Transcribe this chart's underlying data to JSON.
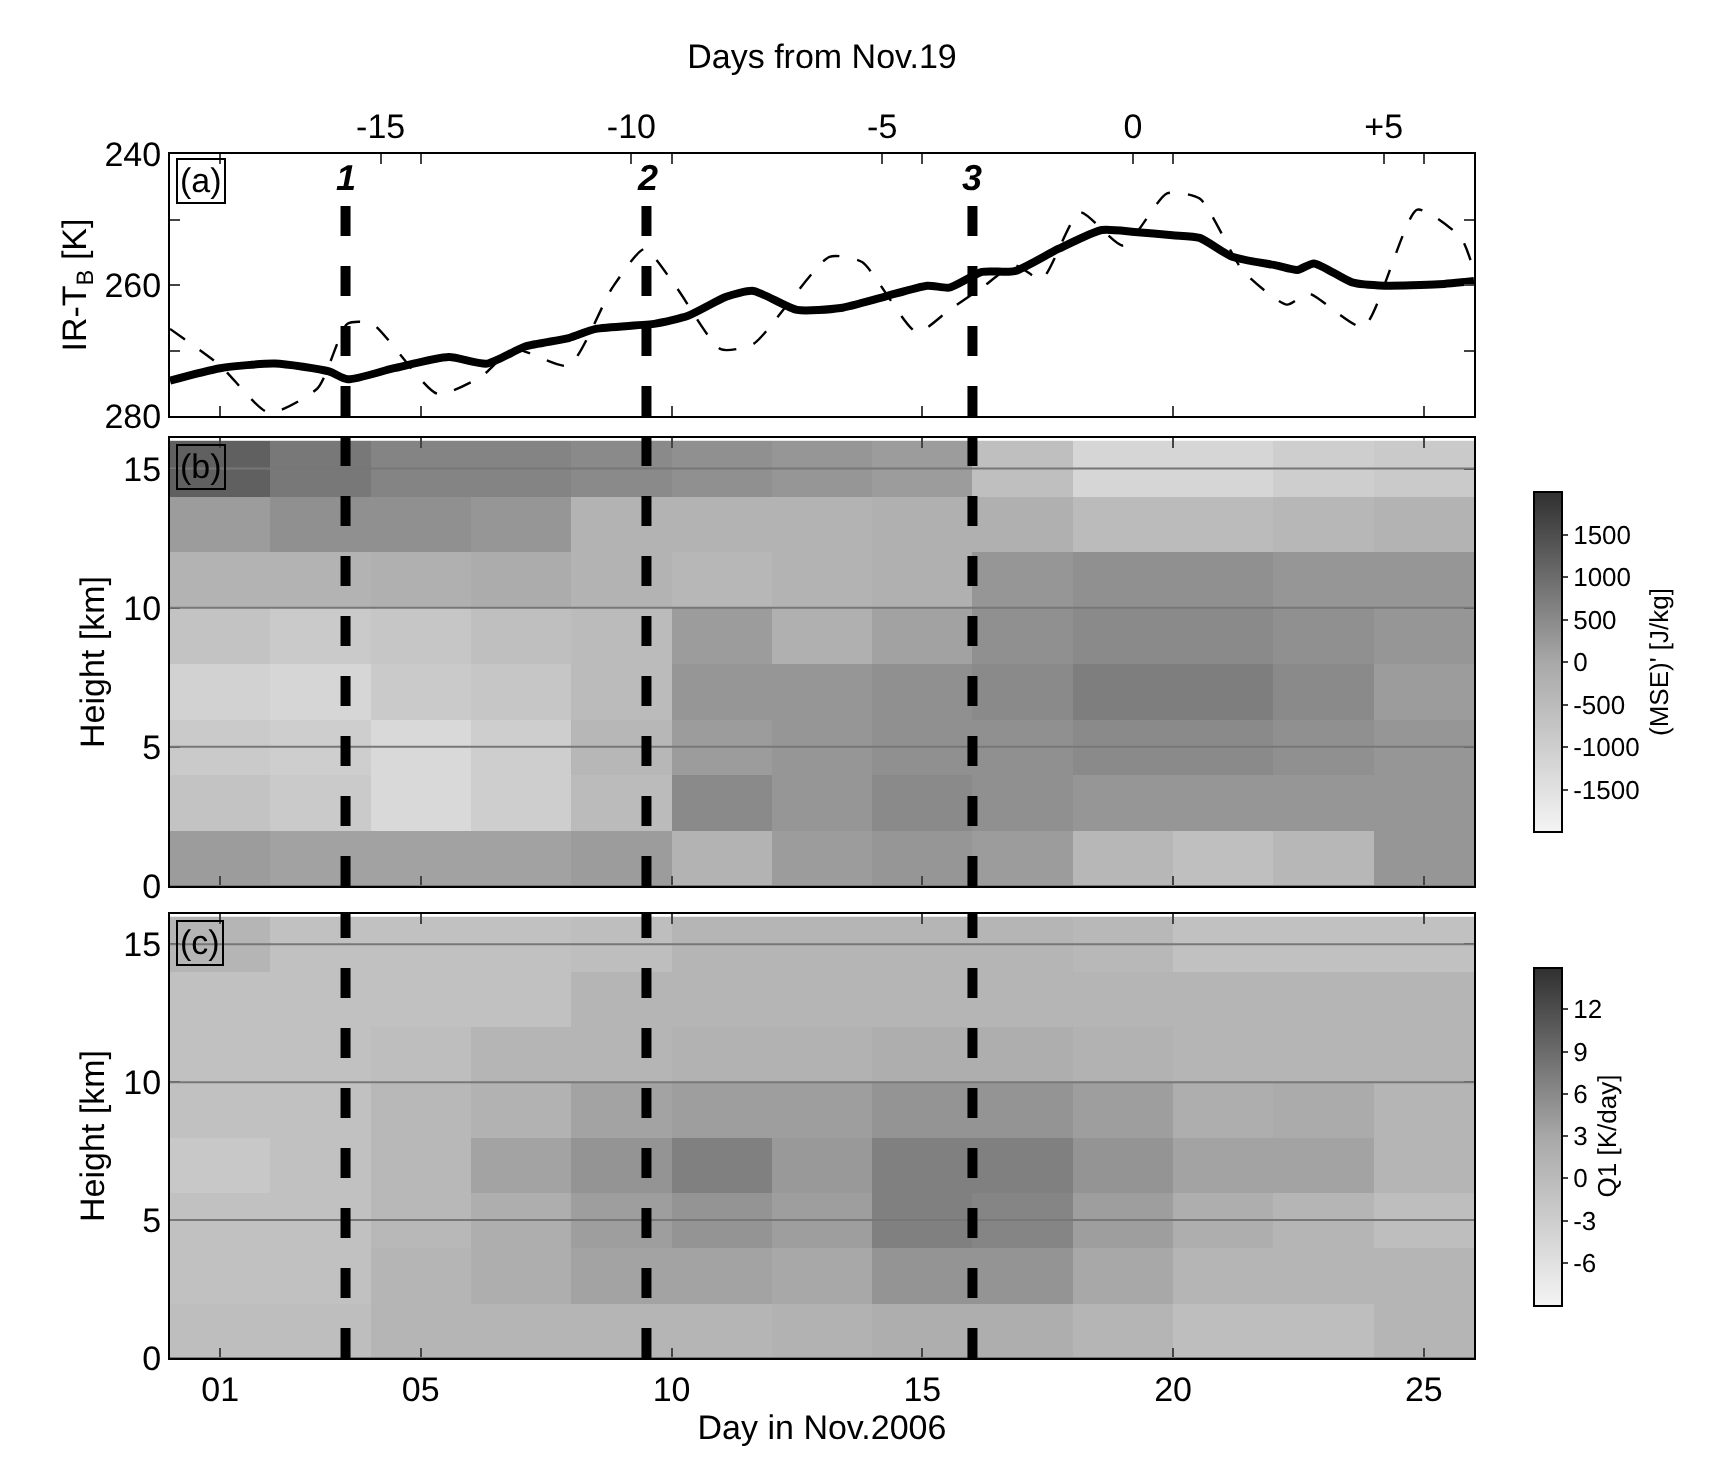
{
  "chart_data": [
    {
      "type": "line",
      "ylabel": "IR-T$_{B}$ [K]",
      "x2label": "Days from Nov.19",
      "xlim": [
        0,
        26
      ],
      "xticks": [
        1,
        5,
        10,
        15,
        20,
        25
      ],
      "x2lim": [
        -19.2,
        6.8
      ],
      "x2ticks": [
        -15,
        -10,
        -5,
        0,
        {
          "value": 5,
          "label": "+5"
        }
      ],
      "ylim": [
        280,
        240
      ],
      "yticks": [
        240,
        {
          "value": 250,
          "label": null
        },
        260,
        {
          "value": 270,
          "label": null
        },
        280
      ],
      "tick_labels": "y",
      "grid": false,
      "marker": "none",
      "annotations": [
        "(a)",
        "1",
        "2",
        "3"
      ],
      "ref_lines": [
        {
          "axis": "x",
          "value": 3.5,
          "line_style": "dashed",
          "color": "#000000"
        },
        {
          "axis": "x",
          "value": 9.5,
          "line_style": "dashed",
          "color": "#000000"
        },
        {
          "axis": "x",
          "value": 16.0,
          "line_style": "dashed",
          "color": "#000000"
        }
      ],
      "series": [
        {
          "color": "#000000",
          "line_style": "solid",
          "x": [
            0,
            1.0,
            2.09,
            3.17,
            3.54,
            4.47,
            5.56,
            6.32,
            7.08,
            7.95,
            8.49,
            9.68,
            10.33,
            11.09,
            11.63,
            12.5,
            13.37,
            14.24,
            15.1,
            15.54,
            16.19,
            16.84,
            17.71,
            18.58,
            19.23,
            19.99,
            20.53,
            21.18,
            22.05,
            22.48,
            22.81,
            23.57,
            24.22,
            25.3,
            26.0
          ],
          "values": [
            274.6,
            272.7,
            272.0,
            273.2,
            274.4,
            272.7,
            271.0,
            272.0,
            269.4,
            268.1,
            266.7,
            265.9,
            264.7,
            261.8,
            260.9,
            263.8,
            263.5,
            261.8,
            260.1,
            260.4,
            258.0,
            257.9,
            254.5,
            251.6,
            251.9,
            252.4,
            252.8,
            255.7,
            257.0,
            257.7,
            256.7,
            259.6,
            260.1,
            259.9,
            259.4
          ]
        },
        {
          "color": "#000000",
          "line_style": "dashed",
          "x": [
            0,
            1.0,
            1.97,
            2.95,
            3.54,
            4.03,
            5.33,
            6.2,
            6.85,
            7.95,
            8.82,
            9.46,
            10.1,
            10.98,
            11.63,
            13.15,
            13.8,
            14.89,
            15.54,
            16.19,
            16.84,
            17.38,
            18.14,
            19.01,
            19.88,
            20.53,
            21.4,
            22.27,
            22.7,
            23.79,
            24.87,
            25.74,
            26.0
          ],
          "values": [
            266.7,
            272.3,
            279.5,
            275.7,
            265.9,
            265.9,
            276.6,
            274.0,
            269.8,
            272.3,
            260.4,
            254.5,
            260.4,
            269.8,
            269.0,
            255.7,
            256.5,
            267.2,
            263.8,
            260.4,
            257.0,
            259.1,
            248.9,
            254.0,
            246.0,
            246.8,
            257.9,
            263.0,
            261.3,
            266.4,
            248.5,
            252.8,
            257.9
          ]
        }
      ]
    },
    {
      "type": "heatmap",
      "ylabel": "Height [km]",
      "clabel": "(MSE)' [J/kg]",
      "annotations": [
        "(b)"
      ],
      "xlim": [
        0,
        26
      ],
      "xticks": [
        1,
        5,
        10,
        15,
        20,
        25
      ],
      "ylim": [
        0,
        16.1
      ],
      "yticks": [
        0,
        5,
        10,
        15
      ],
      "clim": [
        -2000,
        2000
      ],
      "cticks": [
        1500,
        1000,
        500,
        0,
        -500,
        -1000,
        -1500
      ],
      "tick_labels": "y",
      "grid": "y",
      "ref_lines": [
        {
          "axis": "x",
          "value": 3.5,
          "line_style": "dashed",
          "color": "#000000"
        },
        {
          "axis": "x",
          "value": 9.5,
          "line_style": "dashed",
          "color": "#000000"
        },
        {
          "axis": "x",
          "value": 16.0,
          "line_style": "dashed",
          "color": "#000000"
        }
      ],
      "x": [
        1,
        3,
        5,
        7,
        9,
        11,
        13,
        15,
        17,
        19,
        21,
        23,
        25
      ],
      "y": [
        15,
        13,
        11,
        9,
        7,
        5,
        3,
        1
      ],
      "cells": [
        [
          1200,
          800,
          600,
          600,
          500,
          400,
          300,
          200,
          -600,
          -1200,
          -1200,
          -1000,
          -900
        ],
        [
          200,
          400,
          400,
          300,
          -300,
          -300,
          -300,
          -200,
          -200,
          -500,
          -500,
          -400,
          -300
        ],
        [
          -300,
          -300,
          -200,
          -100,
          -300,
          -400,
          -300,
          -200,
          300,
          400,
          400,
          300,
          300
        ],
        [
          -700,
          -900,
          -800,
          -600,
          -500,
          200,
          -200,
          100,
          400,
          500,
          500,
          400,
          300
        ],
        [
          -1100,
          -1200,
          -900,
          -800,
          -500,
          300,
          300,
          400,
          500,
          700,
          700,
          500,
          200
        ],
        [
          -900,
          -1000,
          -1300,
          -1000,
          -400,
          200,
          300,
          400,
          400,
          500,
          500,
          400,
          300
        ],
        [
          -700,
          -900,
          -1300,
          -1000,
          -500,
          500,
          300,
          500,
          400,
          300,
          300,
          300,
          300
        ],
        [
          200,
          100,
          100,
          100,
          200,
          -300,
          200,
          300,
          200,
          -400,
          -600,
          -400,
          300
        ]
      ]
    },
    {
      "type": "heatmap",
      "ylabel": "Height [km]",
      "xlabel": "Day in Nov.2006",
      "clabel": "Q1 [K/day]",
      "annotations": [
        "(c)"
      ],
      "xlim": [
        0,
        26
      ],
      "xticks": [
        {
          "value": 1,
          "label": "01"
        },
        {
          "value": 5,
          "label": "05"
        },
        10,
        15,
        20,
        25
      ],
      "ylim": [
        0,
        16.1
      ],
      "yticks": [
        0,
        5,
        10,
        15
      ],
      "clim": [
        -9,
        15
      ],
      "cticks": [
        12,
        9,
        6,
        3,
        0,
        -3,
        -6
      ],
      "grid": "y",
      "ref_lines": [
        {
          "axis": "x",
          "value": 3.5,
          "line_style": "dashed",
          "color": "#000000"
        },
        {
          "axis": "x",
          "value": 9.5,
          "line_style": "dashed",
          "color": "#000000"
        },
        {
          "axis": "x",
          "value": 16.0,
          "line_style": "dashed",
          "color": "#000000"
        }
      ],
      "x": [
        1,
        3,
        5,
        7,
        9,
        11,
        13,
        15,
        17,
        19,
        21,
        23,
        25
      ],
      "y": [
        15,
        13,
        11,
        9,
        7,
        5,
        3,
        1
      ],
      "cells": [
        [
          1,
          -1,
          -1,
          -1,
          -0.5,
          1,
          1,
          1,
          1,
          0.5,
          -1,
          -1,
          -1
        ],
        [
          -1,
          -1,
          -1,
          -1,
          1,
          1,
          1,
          1,
          1,
          1,
          1,
          1,
          1
        ],
        [
          -1,
          -1,
          -0.5,
          1,
          1,
          1.5,
          1.5,
          2,
          2,
          1.5,
          1,
          1,
          1
        ],
        [
          -1,
          -1,
          0.5,
          1.5,
          3.5,
          4,
          4,
          5,
          5,
          4,
          2,
          2.5,
          1
        ],
        [
          -2,
          -1,
          0.5,
          3.5,
          5,
          7,
          4.5,
          7,
          7,
          5,
          3.5,
          3.5,
          1
        ],
        [
          -1,
          -1,
          0.5,
          2,
          4,
          5,
          4,
          7,
          6.5,
          4,
          2,
          1,
          -0.5
        ],
        [
          -1,
          -1,
          1,
          2,
          3.5,
          3.5,
          3,
          5,
          5,
          3,
          1,
          1,
          1
        ],
        [
          -0.5,
          -0.5,
          1,
          1,
          1,
          1,
          1.5,
          2,
          2,
          1,
          -0.5,
          -0.5,
          1
        ]
      ]
    }
  ]
}
